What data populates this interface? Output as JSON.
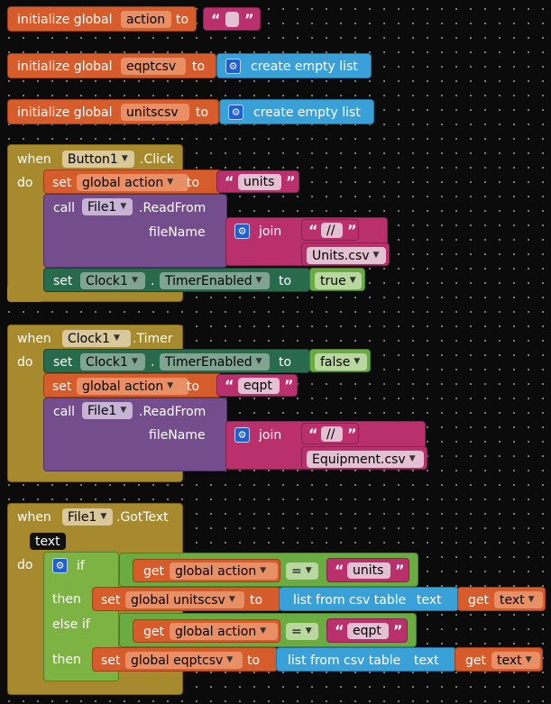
{
  "colors": {
    "background": "#0b0b0b",
    "variables_orange": "#d65c2c",
    "event_gold": "#a88a2e",
    "procedure_purple": "#744e8c",
    "text_magenta": "#b9306d",
    "list_blue": "#3aa1d8",
    "component_teal": "#276a4c",
    "logic_green": "#6aac42",
    "control_green": "#7cb342",
    "mutator_icon": "#1e5fd8"
  },
  "globals": [
    {
      "prefix": "initialize global",
      "name": "action",
      "to": "to",
      "value_quote": "“",
      "value_quote_end": "”"
    },
    {
      "prefix": "initialize global",
      "name": "eqptcsv",
      "to": "to",
      "value": "create empty list"
    },
    {
      "prefix": "initialize global",
      "name": "unitscsv",
      "to": "to",
      "value": "create empty list"
    }
  ],
  "event_button": {
    "when": "when",
    "component": "Button1",
    "event": ".Click",
    "do": "do",
    "set1": {
      "set": "set",
      "var": "global action",
      "to": "to",
      "text": "units"
    },
    "call": {
      "call": "call",
      "component": "File1",
      "method": ".ReadFrom",
      "param": "fileName",
      "join": "join",
      "str1": "//",
      "str2": "Units.csv"
    },
    "set2": {
      "set": "set",
      "component": "Clock1",
      "dot": ".",
      "prop": "TimerEnabled",
      "to": "to",
      "value": "true"
    }
  },
  "event_clock": {
    "when": "when",
    "component": "Clock1",
    "event": ".Timer",
    "do": "do",
    "set1": {
      "set": "set",
      "component": "Clock1",
      "dot": ".",
      "prop": "TimerEnabled",
      "to": "to",
      "value": "false"
    },
    "set2": {
      "set": "set",
      "var": "global action",
      "to": "to",
      "text": "eqpt"
    },
    "call": {
      "call": "call",
      "component": "File1",
      "method": ".ReadFrom",
      "param": "fileName",
      "join": "join",
      "str1": "//",
      "str2": "Equipment.csv"
    }
  },
  "event_file": {
    "when": "when",
    "component": "File1",
    "event": ".GotText",
    "param": "text",
    "do": "do",
    "if": "if",
    "then": "then",
    "else_if": "else if",
    "get": "get",
    "var_action": "global action",
    "eq": "=",
    "str_units": "units",
    "str_eqpt": "eqpt",
    "set": "set",
    "var_units": "global unitscsv",
    "var_eqpt": "global eqptcsv",
    "to": "to",
    "list_from_csv": "list from csv table",
    "text_label": "text",
    "get_text": "text"
  },
  "icons": {
    "mutator": "gear-icon",
    "dropdown": "dropdown-arrow-icon"
  }
}
